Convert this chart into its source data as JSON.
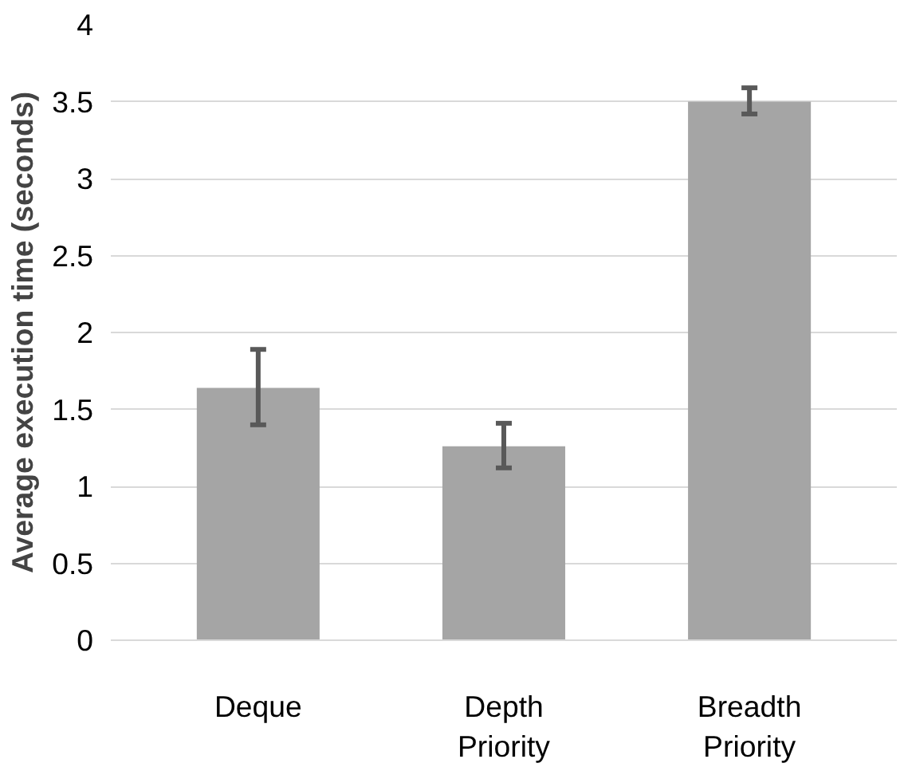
{
  "chart_data": {
    "type": "bar",
    "ylabel": "Average execution time (seconds)",
    "categories": [
      "Deque",
      "Depth Priority",
      "Breadth Priority"
    ],
    "values": [
      1.64,
      1.26,
      3.5
    ],
    "errors": [
      [
        1.4,
        1.89
      ],
      [
        1.12,
        1.41
      ],
      [
        3.42,
        3.59
      ]
    ],
    "color": "#a5a5a5",
    "ylim": [
      0,
      4
    ],
    "yticks": [
      0,
      0.5,
      1,
      1.5,
      2,
      2.5,
      3,
      3.5,
      4
    ],
    "grid": "y"
  }
}
